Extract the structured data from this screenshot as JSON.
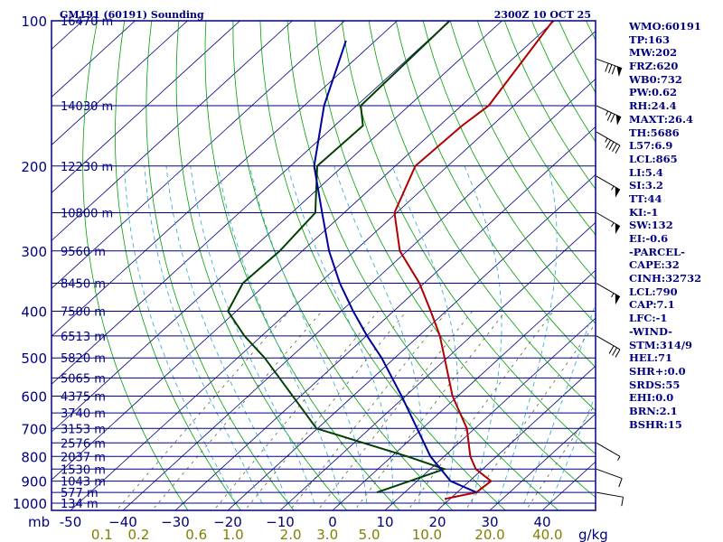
{
  "header": {
    "station": "GM191 (60191) Sounding",
    "time": "2300Z 10 OCT 25"
  },
  "indices": [
    "WMO:60191",
    "TP:163",
    "MW:202",
    "FRZ:620",
    "WB0:732",
    "PW:0.62",
    "RH:24.4",
    "MAXT:26.4",
    "TH:5686",
    "L57:6.9",
    "LCL:865",
    "LI:5.4",
    "SI:3.2",
    "TT:44",
    "KI:-1",
    "SW:132",
    "EI:-0.6",
    "-PARCEL-",
    "CAPE:32",
    "CINH:32732",
    "LCL:790",
    "CAP:7.1",
    "LFC:-1",
    "-WIND-",
    "STM:314/9",
    "HEL:71",
    "SHR+:0.0",
    "SRDS:55",
    "EHI:0.0",
    "BRN:2.1",
    "BSHR:15"
  ],
  "chart_data": {
    "type": "skew-t log-p sounding",
    "x_unit": "mb",
    "mixing_ratio_unit": "g/kg",
    "temperature_ticks": [
      -50,
      -40,
      -30,
      -20,
      -10,
      0,
      10,
      20,
      30,
      40
    ],
    "temperature_tick_labels": [
      "-50",
      "−40",
      "−30",
      "−20",
      "−10",
      "0",
      "10",
      "20",
      "30",
      "40"
    ],
    "mixing_ratio_labels": [
      {
        "label": "0.1",
        "x_temp": -44
      },
      {
        "label": "0.2",
        "x_temp": -37
      },
      {
        "label": "0.6",
        "x_temp": -26
      },
      {
        "label": "1.0",
        "x_temp": -19
      },
      {
        "label": "2.0",
        "x_temp": -8
      },
      {
        "label": "3.0",
        "x_temp": -1
      },
      {
        "label": "5.0",
        "x_temp": 7
      },
      {
        "label": "10.0",
        "x_temp": 18
      },
      {
        "label": "20.0",
        "x_temp": 30
      },
      {
        "label": "40.0",
        "x_temp": 41
      }
    ],
    "pressure_ticks": [
      100,
      200,
      300,
      400,
      500,
      600,
      700,
      800,
      900,
      1000
    ],
    "pressure_range": [
      1000,
      100
    ],
    "height_levels": [
      {
        "p": 100,
        "label": "16470 m"
      },
      {
        "p": 150,
        "label": "14030 m"
      },
      {
        "p": 200,
        "label": "12230 m"
      },
      {
        "p": 250,
        "label": "10800 m"
      },
      {
        "p": 300,
        "label": "9560 m"
      },
      {
        "p": 350,
        "label": "8450 m"
      },
      {
        "p": 400,
        "label": "7500 m"
      },
      {
        "p": 450,
        "label": "6513 m"
      },
      {
        "p": 500,
        "label": "5820 m"
      },
      {
        "p": 550,
        "label": "5065 m"
      },
      {
        "p": 600,
        "label": "4375 m"
      },
      {
        "p": 650,
        "label": "3740 m"
      },
      {
        "p": 700,
        "label": "3153 m"
      },
      {
        "p": 750,
        "label": "2576 m"
      },
      {
        "p": 800,
        "label": "2037 m"
      },
      {
        "p": 850,
        "label": "1530 m"
      },
      {
        "p": 900,
        "label": "1043 m"
      },
      {
        "p": 950,
        "label": "577 m"
      },
      {
        "p": 1000,
        "label": "134 m"
      }
    ],
    "series": [
      {
        "role": "temperature",
        "color": "#b00000",
        "points": [
          [
            100,
            -60.3
          ],
          [
            150,
            -54.8
          ],
          [
            165,
            -55.7
          ],
          [
            200,
            -56.2
          ],
          [
            250,
            -50.4
          ],
          [
            300,
            -41.4
          ],
          [
            350,
            -30.9
          ],
          [
            400,
            -22.9
          ],
          [
            450,
            -16.0
          ],
          [
            500,
            -10.5
          ],
          [
            600,
            -1.0
          ],
          [
            700,
            8.5
          ],
          [
            800,
            15.0
          ],
          [
            850,
            18.7
          ],
          [
            900,
            24.1
          ],
          [
            950,
            23.7
          ],
          [
            980,
            19.0
          ]
        ]
      },
      {
        "role": "dewpoint",
        "color": "#004000",
        "points": [
          [
            100,
            -80.0
          ],
          [
            150,
            -79.2
          ],
          [
            165,
            -74.6
          ],
          [
            200,
            -74.9
          ],
          [
            250,
            -65.5
          ],
          [
            300,
            -64.3
          ],
          [
            350,
            -64.6
          ],
          [
            400,
            -61.6
          ],
          [
            450,
            -53.3
          ],
          [
            500,
            -44.8
          ],
          [
            700,
            -20.2
          ],
          [
            800,
            3.0
          ],
          [
            850,
            12.7
          ],
          [
            900,
            8.6
          ],
          [
            950,
            4.7
          ]
        ]
      },
      {
        "role": "parcel",
        "color": "#00009a",
        "points": [
          [
            110,
            -95.6
          ],
          [
            150,
            -86.2
          ],
          [
            200,
            -75.5
          ],
          [
            250,
            -64.2
          ],
          [
            300,
            -54.9
          ],
          [
            350,
            -46.1
          ],
          [
            400,
            -37.7
          ],
          [
            450,
            -29.9
          ],
          [
            500,
            -22.5
          ],
          [
            600,
            -10.7
          ],
          [
            700,
            -1.0
          ],
          [
            800,
            7.4
          ],
          [
            900,
            16.4
          ],
          [
            950,
            23.7
          ]
        ]
      }
    ],
    "wind_barbs": [
      {
        "p": 120,
        "speed_kt": 80,
        "dir_deg": 290
      },
      {
        "p": 150,
        "speed_kt": 75,
        "dir_deg": 295
      },
      {
        "p": 170,
        "speed_kt": 45,
        "dir_deg": 300
      },
      {
        "p": 210,
        "speed_kt": 55,
        "dir_deg": 300
      },
      {
        "p": 250,
        "speed_kt": 55,
        "dir_deg": 300
      },
      {
        "p": 350,
        "speed_kt": 55,
        "dir_deg": 300
      },
      {
        "p": 450,
        "speed_kt": 30,
        "dir_deg": 300
      },
      {
        "p": 750,
        "speed_kt": 5,
        "dir_deg": 300
      },
      {
        "p": 850,
        "speed_kt": 10,
        "dir_deg": 290
      },
      {
        "p": 950,
        "speed_kt": 10,
        "dir_deg": 280
      }
    ],
    "colors": {
      "isobar": "#000080",
      "isotherm": "#000080",
      "dry_adiabat": "#00a000",
      "moist_adiabat": "#40b0d0",
      "mixing_ratio": "#606040",
      "background": "#ffffff"
    }
  }
}
